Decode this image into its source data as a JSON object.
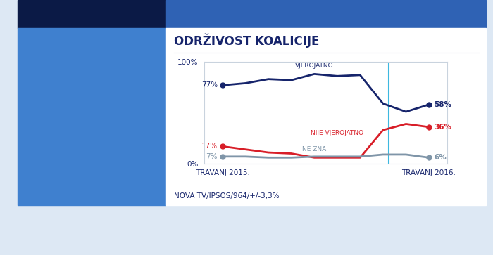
{
  "chart_data": {
    "type": "line",
    "title": "ODRŽIVOST KOALICIJE",
    "source": "NOVA TV/IPSOS/964/+/-3,3%",
    "categories": [
      "TRAVANJ 2015.",
      null,
      null,
      null,
      null,
      null,
      null,
      null,
      null,
      "TRAVANJ 2016."
    ],
    "series": [
      {
        "name": "VJEROJATNO",
        "color": "#16246b",
        "marker": "o",
        "line_style": "solid",
        "values": [
          77,
          79,
          83,
          82,
          88,
          86,
          87,
          59,
          51,
          58
        ],
        "value_labels": [
          "77%",
          null,
          null,
          null,
          null,
          null,
          null,
          null,
          null,
          "58%"
        ]
      },
      {
        "name": "NIJE VJEROJATNO",
        "color": "#d81e28",
        "marker": "o",
        "line_style": "solid",
        "values": [
          17,
          14,
          11,
          10,
          6,
          6,
          6,
          33,
          39,
          36
        ],
        "value_labels": [
          "17%",
          null,
          null,
          null,
          null,
          null,
          null,
          null,
          null,
          "36%"
        ]
      },
      {
        "name": "NE ZNA",
        "color": "#7f95a8",
        "marker": "o",
        "line_style": "solid",
        "values": [
          7,
          7,
          6,
          6,
          7,
          7,
          7,
          9,
          9,
          6
        ],
        "value_labels": [
          "7%",
          null,
          null,
          null,
          null,
          null,
          null,
          null,
          null,
          "6%"
        ]
      }
    ],
    "vline": 7.25,
    "ylim": [
      0,
      100
    ],
    "yticks": [
      {
        "value": 0,
        "label": "0%"
      },
      {
        "value": 100,
        "label": "100%"
      }
    ]
  }
}
